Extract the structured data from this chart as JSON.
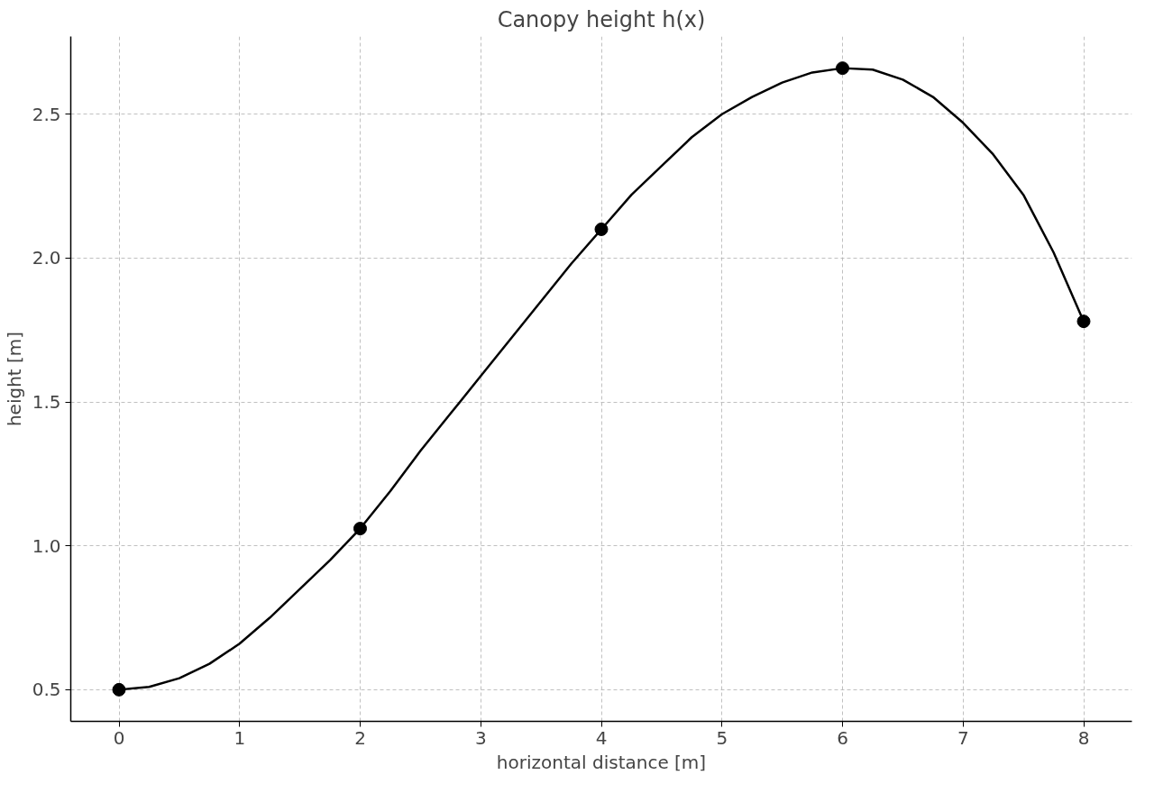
{
  "chart_data": {
    "type": "line",
    "title": "Canopy height h(x)",
    "xlabel": "horizontal distance [m]",
    "ylabel": "height [m]",
    "xlim": [
      -0.4,
      8.4
    ],
    "ylim": [
      0.39,
      2.77
    ],
    "xticks": [
      0,
      1,
      2,
      3,
      4,
      5,
      6,
      7,
      8
    ],
    "yticks": [
      {
        "value": 0.5,
        "label": "0.5"
      },
      {
        "value": 1,
        "label": "1.0"
      },
      {
        "value": 1.5,
        "label": "1.5"
      },
      {
        "value": 2,
        "label": "2.0"
      },
      {
        "value": 2.5,
        "label": "2.5"
      }
    ],
    "grid": true,
    "series": [
      {
        "color": "#000000",
        "line_style": "solid",
        "x": [
          0,
          0.25,
          0.5,
          0.75,
          1,
          1.25,
          1.5,
          1.75,
          2,
          2.25,
          2.5,
          2.75,
          3,
          3.25,
          3.5,
          3.75,
          4,
          4.25,
          4.5,
          4.75,
          5,
          5.25,
          5.5,
          5.75,
          6,
          6.25,
          6.5,
          6.75,
          7,
          7.25,
          7.5,
          7.75,
          8
        ],
        "values": [
          0.5,
          0.51,
          0.54,
          0.59,
          0.66,
          0.75,
          0.85,
          0.95,
          1.06,
          1.19,
          1.33,
          1.46,
          1.59,
          1.72,
          1.85,
          1.98,
          2.1,
          2.22,
          2.32,
          2.42,
          2.5,
          2.56,
          2.61,
          2.645,
          2.66,
          2.655,
          2.62,
          2.56,
          2.47,
          2.36,
          2.22,
          2.02,
          1.78
        ]
      },
      {
        "type": "scatter",
        "color": "#000000",
        "marker": "circle",
        "x": [
          0,
          2,
          4,
          6,
          8
        ],
        "values": [
          0.5,
          1.06,
          2.1,
          2.66,
          1.78
        ]
      }
    ]
  }
}
